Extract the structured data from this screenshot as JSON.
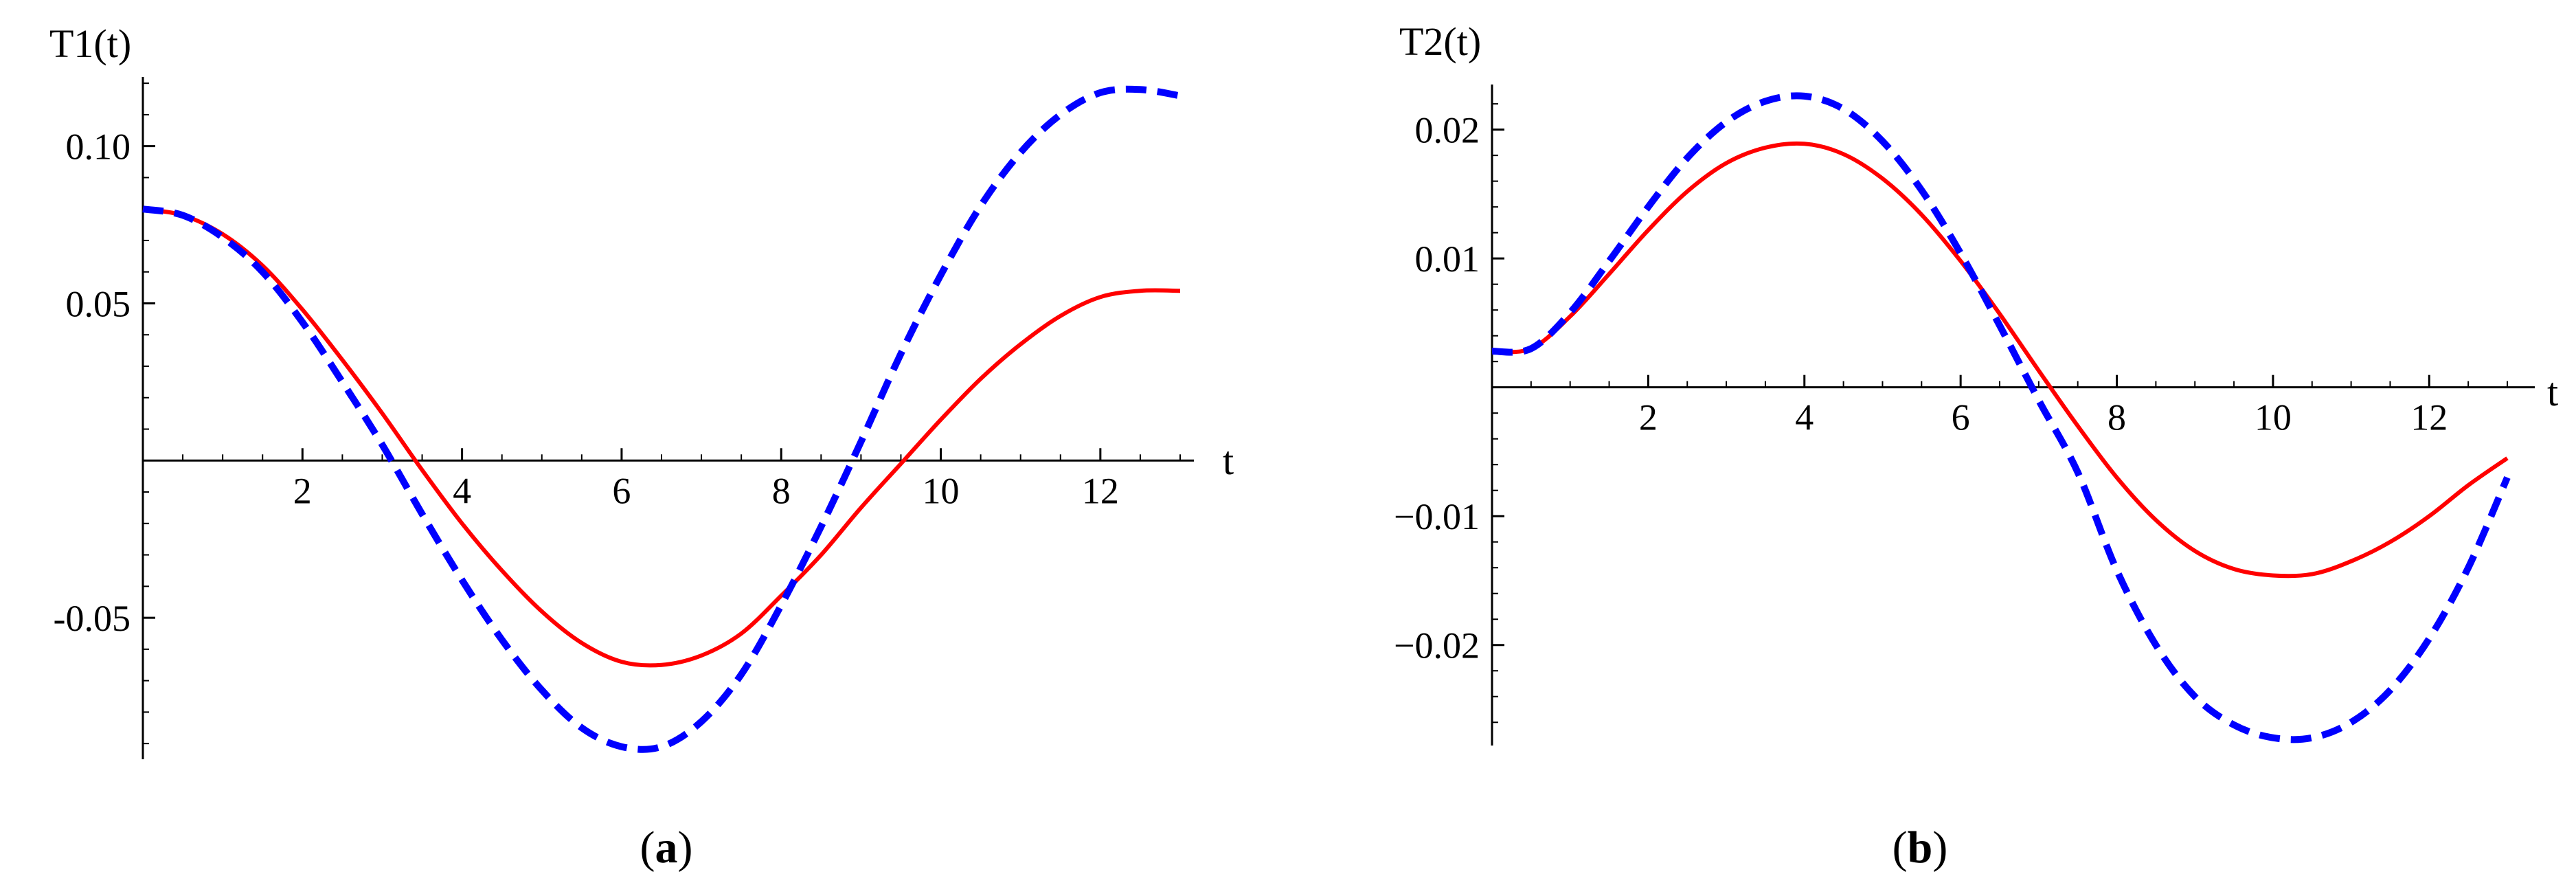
{
  "chart_data": [
    {
      "type": "line",
      "caption_open": "(",
      "caption_letter": "a",
      "caption_close": ")",
      "ylabel": "T1(t)",
      "xlabel": "t",
      "xlim": [
        0,
        13
      ],
      "ylim": [
        -0.095,
        0.122
      ],
      "xticks": [
        2,
        4,
        6,
        8,
        10,
        12
      ],
      "xtick_labels": [
        "2",
        "4",
        "6",
        "8",
        "10",
        "12"
      ],
      "yticks": [
        -0.05,
        0.05,
        0.1
      ],
      "ytick_labels": [
        "-0.05",
        "0.05",
        "0.10"
      ],
      "grid": false,
      "legend": "none",
      "series": [
        {
          "style": "solid",
          "color": "#ff0000",
          "x": [
            0,
            0.5,
            1,
            1.5,
            2,
            2.5,
            3,
            3.5,
            4,
            4.5,
            5,
            5.5,
            6,
            6.5,
            7,
            7.5,
            8,
            8.5,
            9,
            9.5,
            10,
            10.5,
            11,
            11.5,
            12,
            12.5,
            13
          ],
          "y": [
            0.08,
            0.078,
            0.072,
            0.062,
            0.048,
            0.032,
            0.015,
            -0.003,
            -0.02,
            -0.035,
            -0.048,
            -0.058,
            -0.064,
            -0.065,
            -0.062,
            -0.055,
            -0.043,
            -0.03,
            -0.015,
            -0.001,
            0.013,
            0.026,
            0.037,
            0.046,
            0.052,
            0.054,
            0.054
          ]
        },
        {
          "style": "dashed",
          "color": "#0000ff",
          "x": [
            0,
            0.5,
            1,
            1.5,
            2,
            2.5,
            3,
            3.5,
            4,
            4.5,
            5,
            5.5,
            6,
            6.5,
            7,
            7.5,
            8,
            8.5,
            9,
            9.5,
            10,
            10.5,
            11,
            11.5,
            12,
            12.5,
            13
          ],
          "y": [
            0.08,
            0.078,
            0.071,
            0.06,
            0.044,
            0.025,
            0.005,
            -0.017,
            -0.038,
            -0.057,
            -0.073,
            -0.085,
            -0.091,
            -0.091,
            -0.083,
            -0.068,
            -0.046,
            -0.021,
            0.006,
            0.034,
            0.059,
            0.081,
            0.098,
            0.11,
            0.117,
            0.118,
            0.116
          ]
        }
      ]
    },
    {
      "type": "line",
      "caption_open": "(",
      "caption_letter": "b",
      "caption_close": ")",
      "ylabel": "T2(t)",
      "xlabel": "t",
      "xlim": [
        0,
        13
      ],
      "ylim": [
        -0.0278,
        0.0235
      ],
      "xticks": [
        2,
        4,
        6,
        8,
        10,
        12
      ],
      "xtick_labels": [
        "2",
        "4",
        "6",
        "8",
        "10",
        "12"
      ],
      "yticks": [
        -0.02,
        -0.01,
        0.01,
        0.02
      ],
      "ytick_labels": [
        "−0.02",
        "−0.01",
        "0.01",
        "0.02"
      ],
      "grid": false,
      "legend": "none",
      "series": [
        {
          "style": "solid",
          "color": "#ff0000",
          "x": [
            0,
            0.5,
            1,
            1.5,
            2,
            2.5,
            3,
            3.5,
            4,
            4.5,
            5,
            5.5,
            6,
            6.5,
            7,
            7.5,
            8,
            8.5,
            9,
            9.5,
            10,
            10.5,
            11,
            11.5,
            12,
            12.5,
            13
          ],
          "y": [
            0.0028,
            0.003,
            0.0055,
            0.0088,
            0.0122,
            0.0152,
            0.0174,
            0.0186,
            0.0189,
            0.0181,
            0.0162,
            0.0134,
            0.0098,
            0.0057,
            0.0013,
            -0.003,
            -0.007,
            -0.0103,
            -0.0127,
            -0.0141,
            -0.0146,
            -0.0145,
            -0.0135,
            -0.012,
            -0.01,
            -0.0076,
            -0.0055
          ]
        },
        {
          "style": "dashed",
          "color": "#0000ff",
          "x": [
            0,
            0.5,
            1,
            1.5,
            2,
            2.5,
            3,
            3.5,
            4,
            4.5,
            5,
            5.5,
            6,
            6.5,
            7,
            7.5,
            8,
            8.5,
            9,
            9.5,
            10,
            10.5,
            11,
            11.5,
            12,
            12.5,
            13
          ],
          "y": [
            0.0028,
            0.003,
            0.0058,
            0.0098,
            0.014,
            0.0178,
            0.0206,
            0.0222,
            0.0226,
            0.0216,
            0.0191,
            0.0153,
            0.0104,
            0.0048,
            -0.001,
            -0.0066,
            -0.0142,
            -0.02,
            -0.024,
            -0.0262,
            -0.0272,
            -0.0272,
            -0.026,
            -0.0235,
            -0.0195,
            -0.014,
            -0.007
          ]
        }
      ]
    }
  ]
}
